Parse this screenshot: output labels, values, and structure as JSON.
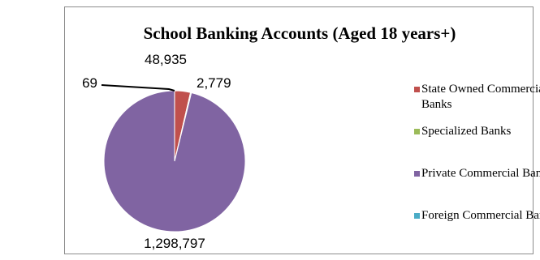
{
  "chart_data": {
    "type": "pie",
    "title": "School Banking Accounts (Aged 18 years+)",
    "categories": [
      "State Owned Commercial Banks",
      "Specialized Banks",
      "Private Commercial Banks",
      "Foreign Commercial Banks"
    ],
    "values": [
      48935,
      2779,
      1298797,
      69
    ],
    "value_labels": [
      "48,935",
      "2,779",
      "1,298,797",
      "69"
    ],
    "colors": [
      "#c0504d",
      "#9bbb59",
      "#8064a2",
      "#4bacc6"
    ],
    "legend_position": "right"
  }
}
